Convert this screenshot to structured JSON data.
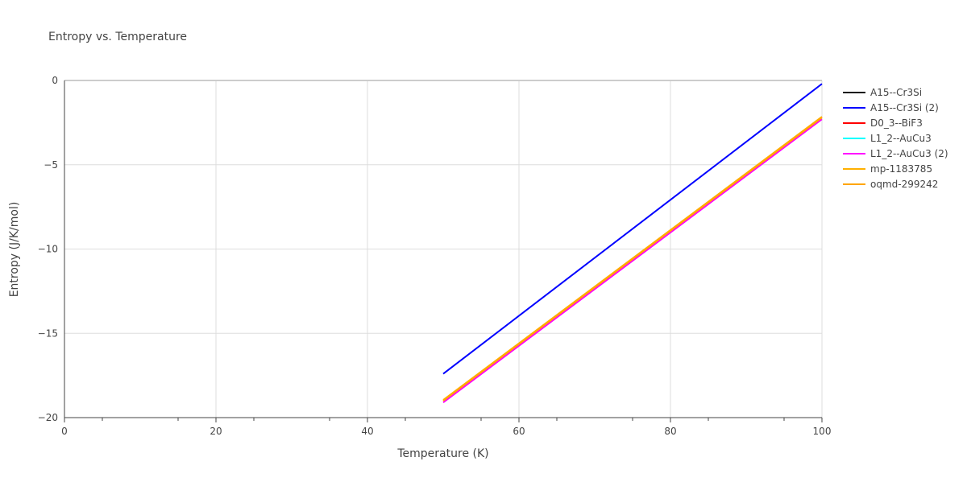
{
  "chart_data": {
    "type": "line",
    "title": "Entropy vs. Temperature",
    "xlabel": "Temperature (K)",
    "ylabel": "Entropy (J/K/mol)",
    "xlim": [
      0,
      100
    ],
    "ylim": [
      -20,
      0
    ],
    "x_ticks": [
      0,
      20,
      40,
      60,
      80,
      100
    ],
    "y_ticks": [
      0,
      -5,
      -10,
      -15,
      -20
    ],
    "y_tick_labels": [
      "0",
      "−5",
      "−10",
      "−15",
      "−20"
    ],
    "grid": true,
    "legend_position": "top-right",
    "series": [
      {
        "name": "A15--Cr3Si",
        "color": "#111111",
        "x": [],
        "y": []
      },
      {
        "name": "A15--Cr3Si (2)",
        "color": "#0000ff",
        "x": [
          50,
          100
        ],
        "y": [
          -17.4,
          -0.2
        ]
      },
      {
        "name": "D0_3--BiF3",
        "color": "#ff0000",
        "x": [],
        "y": []
      },
      {
        "name": "L1_2--AuCu3",
        "color": "#00ffff",
        "x": [],
        "y": []
      },
      {
        "name": "L1_2--AuCu3 (2)",
        "color": "#ff00ff",
        "x": [
          50,
          100
        ],
        "y": [
          -19.1,
          -2.3
        ]
      },
      {
        "name": "mp-1183785",
        "color": "#ffb000",
        "x": [
          50,
          100
        ],
        "y": [
          -18.95,
          -2.15
        ]
      },
      {
        "name": "oqmd-299242",
        "color": "#ffa500",
        "x": [
          50,
          100
        ],
        "y": [
          -19.0,
          -2.2
        ]
      }
    ]
  }
}
